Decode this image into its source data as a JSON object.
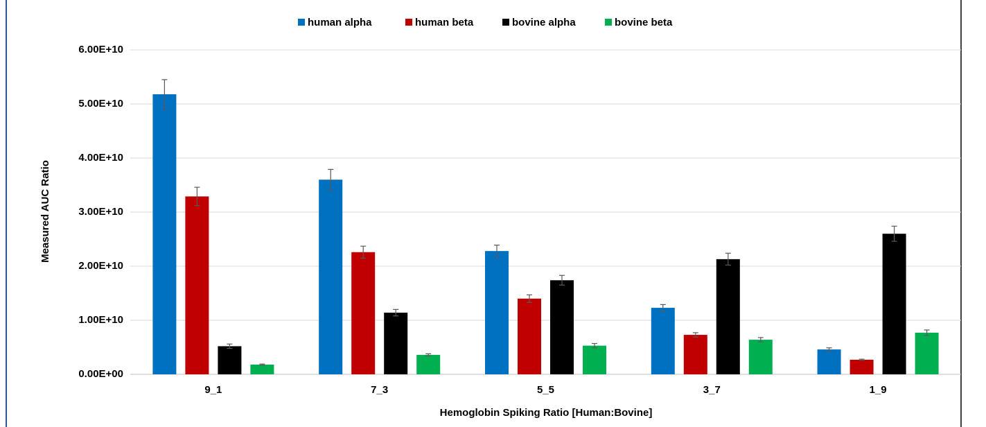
{
  "chart_data": {
    "type": "bar",
    "x_label": "Hemoglobin Spiking Ratio [Human:Bovine]",
    "y_label": "Measured AUC Ratio",
    "categories": [
      "9_1",
      "7_3",
      "5_5",
      "3_7",
      "1_9"
    ],
    "series": [
      {
        "name": "human alpha",
        "color": "#0070c0",
        "values": [
          51800000000,
          36000000000,
          22800000000,
          12300000000,
          4600000000
        ],
        "errors": [
          2700000000,
          1900000000,
          1100000000,
          600000000,
          300000000
        ]
      },
      {
        "name": "human beta",
        "color": "#c00000",
        "values": [
          32900000000,
          22600000000,
          14000000000,
          7300000000,
          2700000000
        ],
        "errors": [
          1700000000,
          1100000000,
          700000000,
          400000000,
          100000000
        ]
      },
      {
        "name": "bovine alpha",
        "color": "#000000",
        "values": [
          5200000000,
          11400000000,
          17400000000,
          21300000000,
          26000000000
        ],
        "errors": [
          400000000,
          600000000,
          900000000,
          1100000000,
          1400000000
        ]
      },
      {
        "name": "bovine beta",
        "color": "#00b050",
        "values": [
          1800000000,
          3600000000,
          5300000000,
          6400000000,
          7700000000
        ],
        "errors": [
          100000000,
          200000000,
          400000000,
          400000000,
          500000000
        ]
      }
    ],
    "ylim": [
      0,
      60000000000
    ],
    "yticks": [
      {
        "value": 0,
        "label": "0.00E+00"
      },
      {
        "value": 10000000000,
        "label": "1.00E+10"
      },
      {
        "value": 20000000000,
        "label": "2.00E+10"
      },
      {
        "value": 30000000000,
        "label": "3.00E+10"
      },
      {
        "value": 40000000000,
        "label": "4.00E+10"
      },
      {
        "value": 50000000000,
        "label": "5.00E+10"
      },
      {
        "value": 60000000000,
        "label": "6.00E+10"
      }
    ],
    "grid": true,
    "legend": "top"
  }
}
